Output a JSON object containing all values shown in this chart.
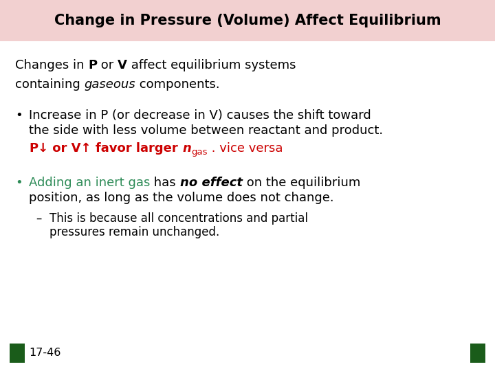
{
  "title": "Change in Pressure (Volume) Affect Equilibrium",
  "title_bg_color": "#f2d0d0",
  "title_fontsize": 15,
  "bg_color": "#ffffff",
  "slide_number": "17-46",
  "bullet1_line1": "Increase in P (or decrease in V) causes the shift toward",
  "bullet1_line2": "the side with less volume between reactant and product.",
  "bullet2_line2": "position, as long as the volume does not change.",
  "bullet2_green_text": "Adding an inert gas",
  "bullet2_line1_a": " has ",
  "bullet2_bold_italic": "no effect",
  "bullet2_line1_b": " on the equilibrium",
  "dash_line1": "This is because all concentrations and partial",
  "dash_line2": "pressures remain unchanged.",
  "green_color": "#2d8b57",
  "red_color": "#cc0000",
  "dark_green_sq": "#1a5c1a",
  "black_color": "#000000",
  "body_fs": 13.0,
  "sub_fs": 9.5,
  "dash_fs": 12.0
}
